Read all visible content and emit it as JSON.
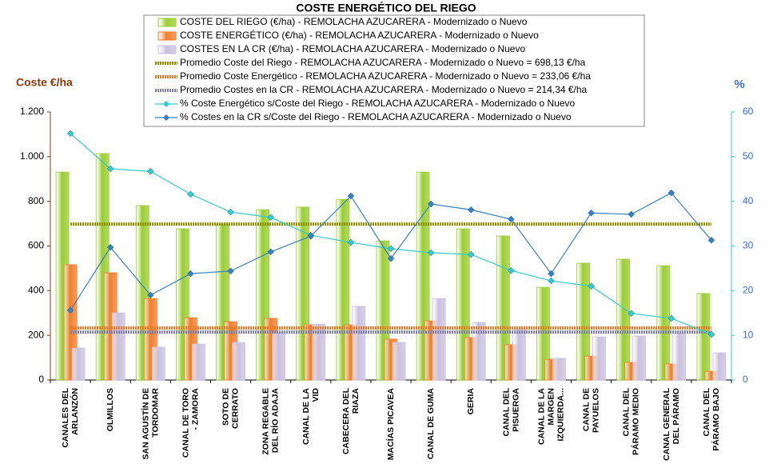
{
  "chart_data": {
    "type": "combo",
    "title": "COSTE ENERGÉTICO DEL RIEGO",
    "y_label": "Coste €/ha",
    "y2_label": "%",
    "categories": [
      "CANALES DEL\nARLANZÓN",
      "OLMILLOS",
      "SAN AGUSTÍN DE\nTORDOMAR",
      "CANAL DE TORO\n- ZAMORA",
      "SOTO DE\nCERRATO",
      "ZONA REGABLE\nDEL RÍO ADAJA",
      "CANAL DE LA\nVID",
      "CABECERA DEL\nRIAZA",
      "MACÍAS PICAVEA",
      "CANAL DE GUMA",
      "GERIA",
      "CANAL DEL\nPISUERGA",
      "CANAL DE LA\nMARGEN\nIZQUIERDA...",
      "CANAL DE\nPAYUELOS",
      "CANAL DEL\nPÁRAMO MEDIO",
      "CANAL GENERAL\nDEL PÁRAMO",
      "CANAL DEL\nPÁRAMO BAJO"
    ],
    "series": [
      {
        "name": "COSTE DEL RIEGO (€/ha) - REMOLACHA AZUCARERA - Modernizado o Nuevo",
        "type": "bar",
        "color": "#9acd32",
        "values": [
          931,
          1014,
          781,
          677,
          698,
          763,
          774,
          809,
          623,
          931,
          677,
          645,
          415,
          523,
          541,
          512,
          387
        ]
      },
      {
        "name": "COSTE ENERGÉTICO (€/ha) - REMOLACHA AZUCARERA - Modernizado o Nuevo",
        "type": "bar",
        "color": "#f47c2a",
        "values": [
          516,
          480,
          365,
          279,
          261,
          276,
          247,
          247,
          183,
          265,
          190,
          158,
          93,
          107,
          79,
          72,
          39
        ]
      },
      {
        "name": "COSTES EN LA CR (€/ha) - REMOLACHA AZUCARERA - Modernizado o Nuevo",
        "type": "bar",
        "color": "#c9c0e0",
        "values": [
          143,
          301,
          147,
          161,
          168,
          211,
          250,
          330,
          168,
          365,
          258,
          226,
          97,
          193,
          197,
          211,
          122
        ]
      },
      {
        "name": "Promedio Coste del Riego - REMOLACHA AZUCARERA - Modernizado o Nuevo = 698,13 €/ha",
        "type": "hline",
        "color": "#8f8f00",
        "value": 698.13
      },
      {
        "name": "Promedio Coste Energético - REMOLACHA AZUCARERA - Modernizado o Nuevo = 233,06 €/ha",
        "type": "hline",
        "color": "#e8782a",
        "value": 233.06
      },
      {
        "name": "Promedio Costes en la CR - REMOLACHA AZUCARERA - Modernizado o Nuevo = 214,34 €/ha",
        "type": "hline",
        "color": "#7f7fa8",
        "value": 214.34
      },
      {
        "name": "% Coste Energético s/Coste del Riego - REMOLACHA AZUCARERA - Modernizado o Nuevo",
        "type": "line",
        "axis": "y2",
        "color": "#33cccc",
        "values": [
          55.2,
          47.3,
          46.7,
          41.6,
          37.6,
          36.4,
          32.4,
          30.8,
          29.4,
          28.5,
          28.1,
          24.5,
          22.2,
          21.0,
          14.9,
          13.8,
          10.2
        ]
      },
      {
        "name": "% Costes en la CR s/Coste del Riego - REMOLACHA AZUCARERA - Modernizado o Nuevo",
        "type": "line",
        "axis": "y2",
        "color": "#3a7fc1",
        "values": [
          15.6,
          29.7,
          19.0,
          23.8,
          24.4,
          28.7,
          32.2,
          41.2,
          27.2,
          39.4,
          38.1,
          36.0,
          23.8,
          37.4,
          37.1,
          41.9,
          31.3
        ]
      }
    ],
    "ylim": [
      0,
      1200
    ],
    "yticks": [
      0,
      200,
      400,
      600,
      800,
      {
        "value": 1000,
        "label": "1.000"
      },
      {
        "value": 1200,
        "label": "1.200"
      }
    ],
    "y2lim": [
      0,
      60
    ],
    "y2ticks": [
      0,
      10,
      20,
      30,
      40,
      50,
      60
    ]
  }
}
